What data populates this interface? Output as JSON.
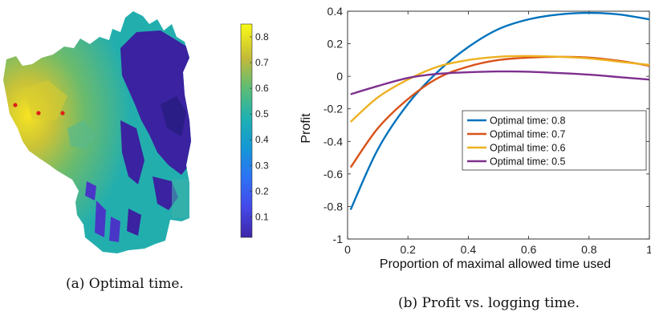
{
  "captions": {
    "a": "(a) Optimal time.",
    "b": "(b) Profit vs. logging time."
  },
  "colors": {
    "map_low": "#3b1f9e",
    "map_mid": "#22b0b0",
    "map_high": "#f9e620",
    "points": "#e0201a"
  },
  "chart_data": [
    {
      "type": "heatmap",
      "title": "",
      "description_label": "Optimal time",
      "colorbar": {
        "ticks": [
          "0.1",
          "0.2",
          "0.3",
          "0.4",
          "0.5",
          "0.6",
          "0.7",
          "0.8"
        ],
        "range": [
          0.02,
          0.85
        ],
        "colormap": "parula"
      },
      "markers": {
        "count": 3,
        "color": "#e0201a"
      }
    },
    {
      "type": "line",
      "xlabel": "Proportion of maximal allowed time used",
      "ylabel": "Profit",
      "xlim": [
        0,
        1
      ],
      "ylim": [
        -1,
        0.4
      ],
      "x_ticks": [
        "0",
        "0.2",
        "0.4",
        "0.6",
        "0.8",
        "1"
      ],
      "y_ticks": [
        "-1",
        "-0.8",
        "-0.6",
        "-0.4",
        "-0.2",
        "0",
        "0.2",
        "0.4"
      ],
      "grid": false,
      "legend_position": "right",
      "x": [
        0.01,
        0.1,
        0.2,
        0.3,
        0.4,
        0.5,
        0.6,
        0.7,
        0.8,
        0.9,
        1.0
      ],
      "series": [
        {
          "name": "Optimal time: 0.8",
          "color": "#0072BD",
          "values": [
            -0.82,
            -0.45,
            -0.17,
            0.03,
            0.18,
            0.29,
            0.35,
            0.38,
            0.39,
            0.38,
            0.35
          ]
        },
        {
          "name": "Optimal time: 0.7",
          "color": "#D95319",
          "values": [
            -0.56,
            -0.32,
            -0.14,
            -0.01,
            0.06,
            0.1,
            0.115,
            0.12,
            0.115,
            0.095,
            0.065
          ]
        },
        {
          "name": "Optimal time: 0.6",
          "color": "#EDB120",
          "values": [
            -0.28,
            -0.13,
            -0.02,
            0.06,
            0.1,
            0.12,
            0.125,
            0.12,
            0.11,
            0.09,
            0.07
          ]
        },
        {
          "name": "Optimal time: 0.5",
          "color": "#7E2F8E",
          "values": [
            -0.11,
            -0.06,
            -0.01,
            0.015,
            0.025,
            0.03,
            0.028,
            0.02,
            0.01,
            -0.005,
            -0.02
          ]
        }
      ]
    }
  ]
}
